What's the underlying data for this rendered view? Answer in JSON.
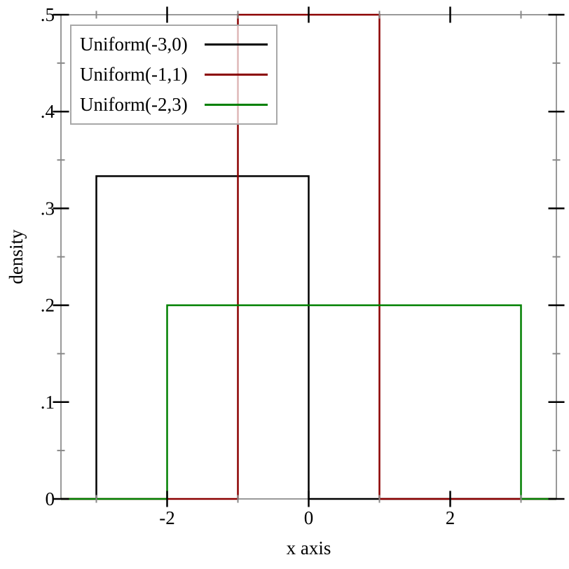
{
  "chart_data": {
    "type": "line",
    "title": "",
    "xlabel": "x axis",
    "ylabel": "density",
    "xlim": [
      -3.5,
      3.5
    ],
    "ylim": [
      0,
      0.5
    ],
    "grid": false,
    "legend_position": "top-left",
    "x_ticks": {
      "major": [
        {
          "v": -2,
          "label": "-2"
        },
        {
          "v": 0,
          "label": "0"
        },
        {
          "v": 2,
          "label": "2"
        }
      ],
      "minor": [
        -3,
        -1,
        1,
        3
      ]
    },
    "y_ticks": {
      "major": [
        {
          "v": 0,
          "label": "0"
        },
        {
          "v": 0.1,
          "label": ".1"
        },
        {
          "v": 0.2,
          "label": ".2"
        },
        {
          "v": 0.3,
          "label": ".3"
        },
        {
          "v": 0.4,
          "label": ".4"
        },
        {
          "v": 0.5,
          "label": ".5"
        }
      ],
      "minor": [
        0.05,
        0.15,
        0.25,
        0.35,
        0.45
      ]
    },
    "series": [
      {
        "name": "Uniform(-3,0)",
        "color": "#000000",
        "points": [
          [
            -3.5,
            0
          ],
          [
            -3,
            0
          ],
          [
            -3,
            0.3333
          ],
          [
            0,
            0.3333
          ],
          [
            0,
            0
          ],
          [
            3.5,
            0
          ]
        ]
      },
      {
        "name": "Uniform(-1,1)",
        "color": "#8b0000",
        "points": [
          [
            -3.5,
            0
          ],
          [
            -1,
            0
          ],
          [
            -1,
            0.5
          ],
          [
            1,
            0.5
          ],
          [
            1,
            0
          ],
          [
            3.5,
            0
          ]
        ]
      },
      {
        "name": "Uniform(-2,3)",
        "color": "#008000",
        "points": [
          [
            -3.5,
            0
          ],
          [
            -2,
            0
          ],
          [
            -2,
            0.2
          ],
          [
            3,
            0.2
          ],
          [
            3,
            0
          ],
          [
            3.5,
            0
          ]
        ]
      }
    ],
    "colors": {
      "frame": "#999999",
      "minor_tick": "#888888",
      "major_tick": "#000000",
      "text": "#000000"
    }
  }
}
